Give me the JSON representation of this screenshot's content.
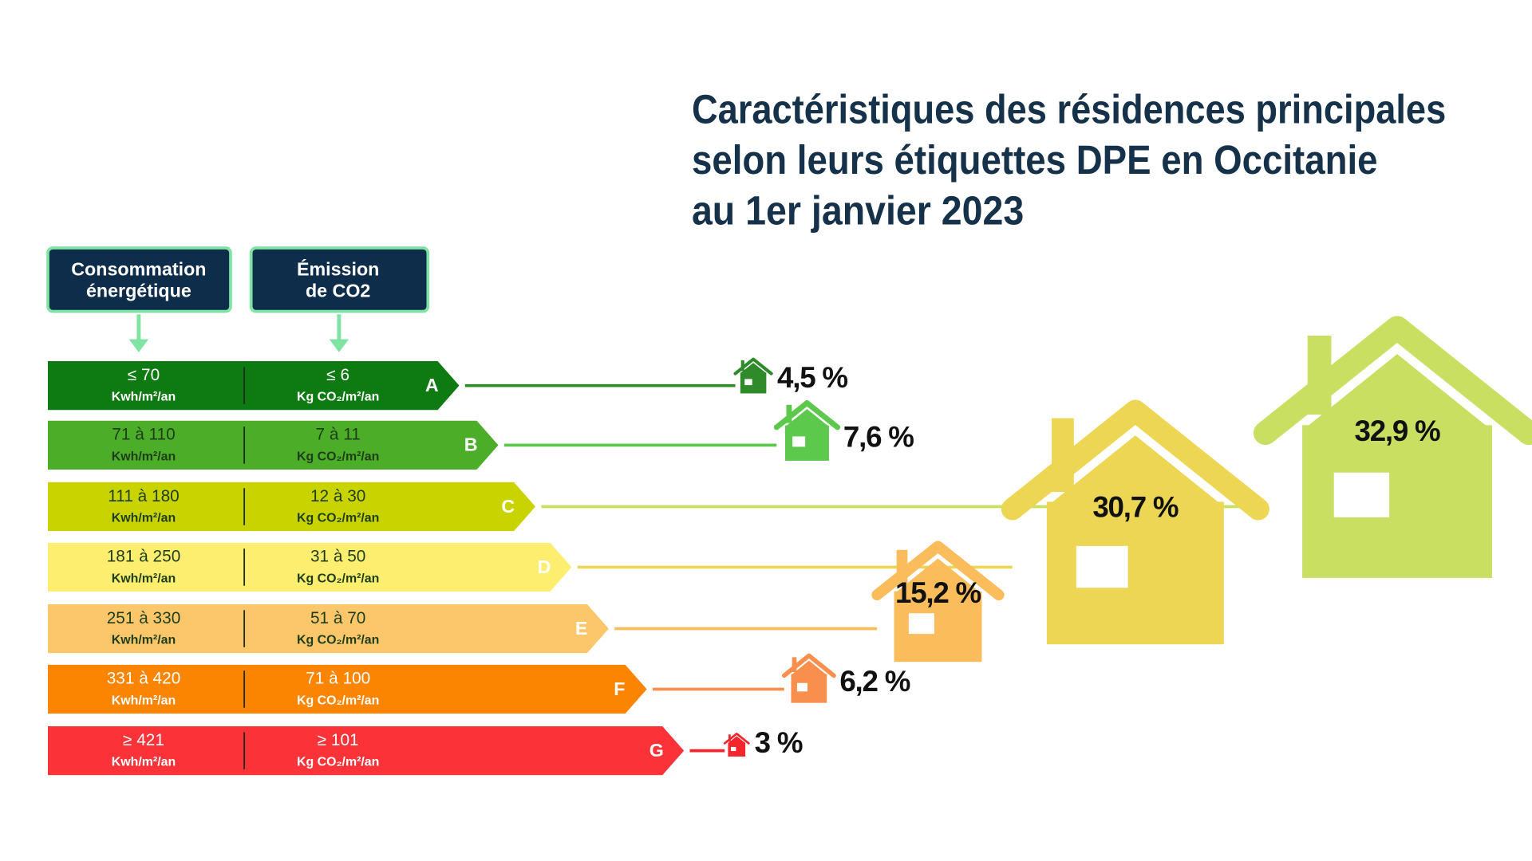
{
  "chart_data": {
    "type": "dpe",
    "title": [
      "Caractéristiques des résidences principales",
      "selon leurs étiquettes DPE en Occitanie",
      "au 1er janvier 2023"
    ],
    "headers": [
      [
        "Consommation",
        "énergétique"
      ],
      [
        "Émission",
        "de CO2"
      ]
    ],
    "categories": [
      "A",
      "B",
      "C",
      "D",
      "E",
      "F",
      "G"
    ],
    "consumption": [
      "≤ 70",
      "71 à 110",
      "111 à 180",
      "181 à 250",
      "251 à 330",
      "331 à 420",
      "≥ 421"
    ],
    "consumption_unit": "Kwh/m²/an",
    "emission": [
      "≤ 6",
      "7 à 11",
      "12 à 30",
      "31 à 50",
      "51 à 70",
      "71 à 100",
      "≥ 101"
    ],
    "emission_unit": "Kg CO₂/m²/an",
    "values": [
      4.5,
      7.6,
      32.9,
      30.7,
      15.2,
      6.2,
      3
    ],
    "value_labels": [
      "4,5 %",
      "7,6 %",
      "32,9 %",
      "30,7 %",
      "15,2 %",
      "6,2 %",
      "3 %"
    ],
    "colors": [
      "#0e7a12",
      "#4cae28",
      "#c8d300",
      "#fdee70",
      "#fcc66a",
      "#fb8500",
      "#fb3338"
    ],
    "house_colors": [
      "#2f8a2a",
      "#5cc94c",
      "#c9df62",
      "#ecd654",
      "#fbbc5c",
      "#f98f4c",
      "#f2262c"
    ]
  }
}
